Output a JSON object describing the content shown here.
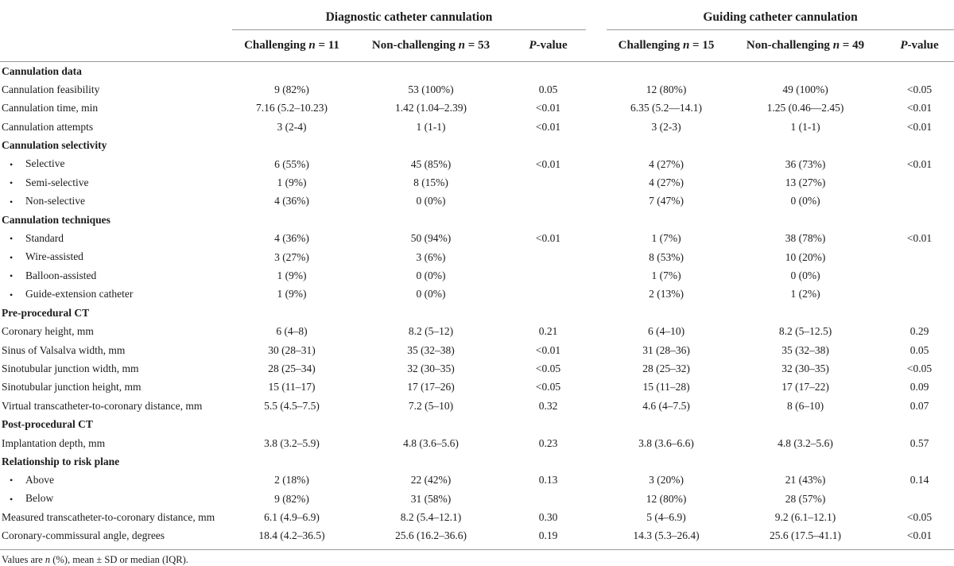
{
  "table": {
    "bullet_char": "•",
    "groups": [
      {
        "title": "Diagnostic catheter cannulation"
      },
      {
        "title": "Guiding catheter cannulation"
      }
    ],
    "subheaders": [
      {
        "prefix": "Challenging ",
        "n": "n",
        "suffix": " = 11"
      },
      {
        "prefix": "Non-challenging ",
        "n": "n",
        "suffix": " = 53"
      },
      {
        "p": "P",
        "rest": "-value"
      },
      {
        "prefix": "Challenging ",
        "n": "n",
        "suffix": " = 15"
      },
      {
        "prefix": "Non-challenging ",
        "n": "n",
        "suffix": " = 49"
      },
      {
        "p": "P",
        "rest": "-value"
      }
    ],
    "rows": [
      {
        "type": "section",
        "label": "Cannulation data"
      },
      {
        "type": "data",
        "bullet": false,
        "label": "Cannulation feasibility",
        "values": [
          "9 (82%)",
          "53 (100%)",
          "0.05",
          "12 (80%)",
          "49 (100%)",
          "<0.05"
        ]
      },
      {
        "type": "data",
        "bullet": false,
        "label": "Cannulation time, min",
        "values": [
          "7.16 (5.2–10.23)",
          "1.42 (1.04–2.39)",
          "<0.01",
          "6.35 (5.2—14.1)",
          "1.25 (0.46—2.45)",
          "<0.01"
        ]
      },
      {
        "type": "data",
        "bullet": false,
        "label": "Cannulation attempts",
        "values": [
          "3 (2-4)",
          "1 (1-1)",
          "<0.01",
          "3 (2-3)",
          "1 (1-1)",
          "<0.01"
        ]
      },
      {
        "type": "section",
        "label": "Cannulation selectivity"
      },
      {
        "type": "data",
        "bullet": true,
        "label": "Selective",
        "values": [
          "6 (55%)",
          "45 (85%)",
          "<0.01",
          "4 (27%)",
          "36 (73%)",
          "<0.01"
        ]
      },
      {
        "type": "data",
        "bullet": true,
        "label": "Semi-selective",
        "values": [
          "1 (9%)",
          "8 (15%)",
          "",
          "4 (27%)",
          "13 (27%)",
          ""
        ]
      },
      {
        "type": "data",
        "bullet": true,
        "label": "Non-selective",
        "values": [
          "4 (36%)",
          "0 (0%)",
          "",
          "7 (47%)",
          "0 (0%)",
          ""
        ]
      },
      {
        "type": "section",
        "label": "Cannulation techniques"
      },
      {
        "type": "data",
        "bullet": true,
        "label": "Standard",
        "values": [
          "4 (36%)",
          "50 (94%)",
          "<0.01",
          "1 (7%)",
          "38 (78%)",
          "<0.01"
        ]
      },
      {
        "type": "data",
        "bullet": true,
        "label": "Wire-assisted",
        "values": [
          "3 (27%)",
          "3 (6%)",
          "",
          "8 (53%)",
          "10 (20%)",
          ""
        ]
      },
      {
        "type": "data",
        "bullet": true,
        "label": "Balloon-assisted",
        "values": [
          "1 (9%)",
          "0 (0%)",
          "",
          "1 (7%)",
          "0 (0%)",
          ""
        ]
      },
      {
        "type": "data",
        "bullet": true,
        "label": "Guide-extension catheter",
        "values": [
          "1 (9%)",
          "0 (0%)",
          "",
          "2 (13%)",
          "1 (2%)",
          ""
        ]
      },
      {
        "type": "section",
        "label": "Pre-procedural CT"
      },
      {
        "type": "data",
        "bullet": false,
        "label": "Coronary height, mm",
        "values": [
          "6 (4–8)",
          "8.2 (5–12)",
          "0.21",
          "6 (4–10)",
          "8.2 (5–12.5)",
          "0.29"
        ]
      },
      {
        "type": "data",
        "bullet": false,
        "label": "Sinus of Valsalva width, mm",
        "values": [
          "30 (28–31)",
          "35 (32–38)",
          "<0.01",
          "31 (28–36)",
          "35 (32–38)",
          "0.05"
        ]
      },
      {
        "type": "data",
        "bullet": false,
        "label": "Sinotubular junction width, mm",
        "values": [
          "28 (25–34)",
          "32 (30–35)",
          "<0.05",
          "28 (25–32)",
          "32 (30–35)",
          "<0.05"
        ]
      },
      {
        "type": "data",
        "bullet": false,
        "label": "Sinotubular junction height, mm",
        "values": [
          "15 (11–17)",
          "17 (17–26)",
          "<0.05",
          "15 (11–28)",
          "17 (17–22)",
          "0.09"
        ]
      },
      {
        "type": "data",
        "bullet": false,
        "label": "Virtual transcatheter-to-coronary distance, mm",
        "values": [
          "5.5 (4.5–7.5)",
          "7.2 (5–10)",
          "0.32",
          "4.6 (4–7.5)",
          "8 (6–10)",
          "0.07"
        ]
      },
      {
        "type": "section",
        "label": "Post-procedural CT"
      },
      {
        "type": "data",
        "bullet": false,
        "label": "Implantation depth, mm",
        "values": [
          "3.8 (3.2–5.9)",
          "4.8 (3.6–5.6)",
          "0.23",
          "3.8 (3.6–6.6)",
          "4.8 (3.2–5.6)",
          "0.57"
        ]
      },
      {
        "type": "section",
        "label": "Relationship to risk plane"
      },
      {
        "type": "data",
        "bullet": true,
        "label": "Above",
        "values": [
          "2 (18%)",
          "22 (42%)",
          "0.13",
          "3 (20%)",
          "21 (43%)",
          "0.14"
        ]
      },
      {
        "type": "data",
        "bullet": true,
        "label": "Below",
        "values": [
          "9 (82%)",
          "31 (58%)",
          "",
          "12 (80%)",
          "28 (57%)",
          ""
        ]
      },
      {
        "type": "data",
        "bullet": false,
        "label": "Measured transcatheter-to-coronary distance, mm",
        "values": [
          "6.1 (4.9–6.9)",
          "8.2 (5.4–12.1)",
          "0.30",
          "5 (4–6.9)",
          "9.2 (6.1–12.1)",
          "<0.05"
        ]
      },
      {
        "type": "data",
        "bullet": false,
        "label": "Coronary-commissural angle, degrees",
        "values": [
          "18.4 (4.2–36.5)",
          "25.6 (16.2–36.6)",
          "0.19",
          "14.3 (5.3–26.4)",
          "25.6 (17.5–41.1)",
          "<0.01"
        ]
      }
    ]
  },
  "footnote": {
    "part1": "Values are ",
    "n": "n",
    "part2": " (%), mean ± SD or median (IQR)."
  }
}
